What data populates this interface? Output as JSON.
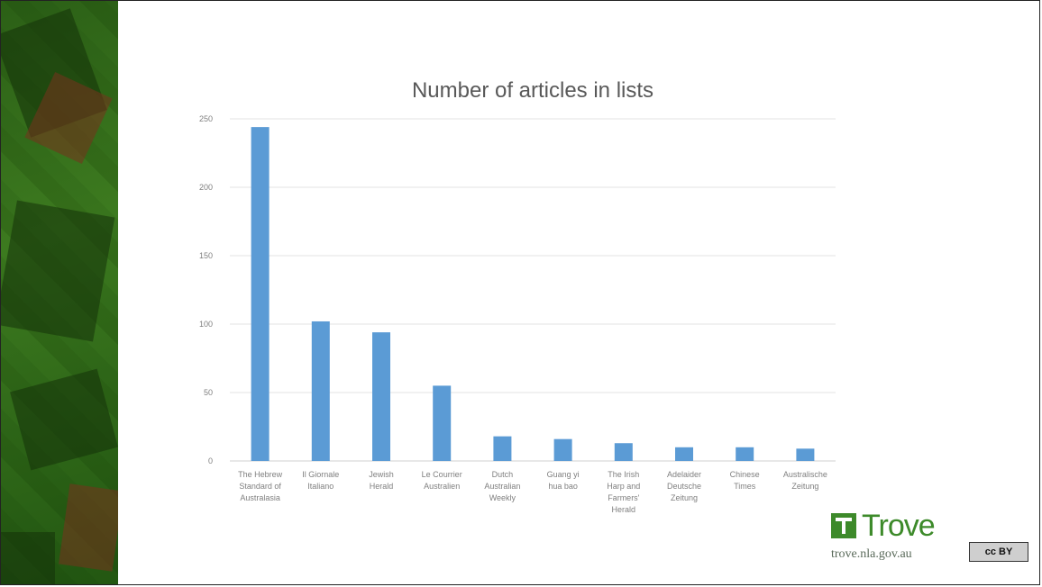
{
  "slide": {
    "logo_text": "Trove",
    "url": "trove.nla.gov.au",
    "license_badge": "cc BY"
  },
  "colors": {
    "bar": "#5b9bd5",
    "grid": "#e3e3e3",
    "sidebar": "#3e7f22",
    "brand": "#3d8a2a"
  },
  "chart_data": {
    "type": "bar",
    "title": "Number of articles in lists",
    "xlabel": "",
    "ylabel": "",
    "ylim": [
      0,
      250
    ],
    "yticks": [
      0,
      50,
      100,
      150,
      200,
      250
    ],
    "grid": true,
    "legend": "none",
    "categories": [
      "The Hebrew Standard of Australasia",
      "Il Giornale Italiano",
      "Jewish Herald",
      "Le Courrier Australien",
      "Dutch Australian Weekly",
      "Guang yi hua bao",
      "The Irish Harp and Farmers' Herald",
      "Adelaider Deutsche Zeitung",
      "Chinese Times",
      "Australische Zeitung"
    ],
    "category_lines": [
      [
        "The Hebrew",
        "Standard of",
        "Australasia"
      ],
      [
        "Il Giornale",
        "Italiano"
      ],
      [
        "Jewish",
        "Herald"
      ],
      [
        "Le Courrier",
        "Australien"
      ],
      [
        "Dutch",
        "Australian",
        "Weekly"
      ],
      [
        "Guang yi",
        "hua bao"
      ],
      [
        "The Irish",
        "Harp and",
        "Farmers'",
        "Herald"
      ],
      [
        "Adelaider",
        "Deutsche",
        "Zeitung"
      ],
      [
        "Chinese",
        "Times"
      ],
      [
        "Australische",
        "Zeitung"
      ]
    ],
    "values": [
      244,
      102,
      94,
      55,
      18,
      16,
      13,
      10,
      10,
      9
    ]
  }
}
